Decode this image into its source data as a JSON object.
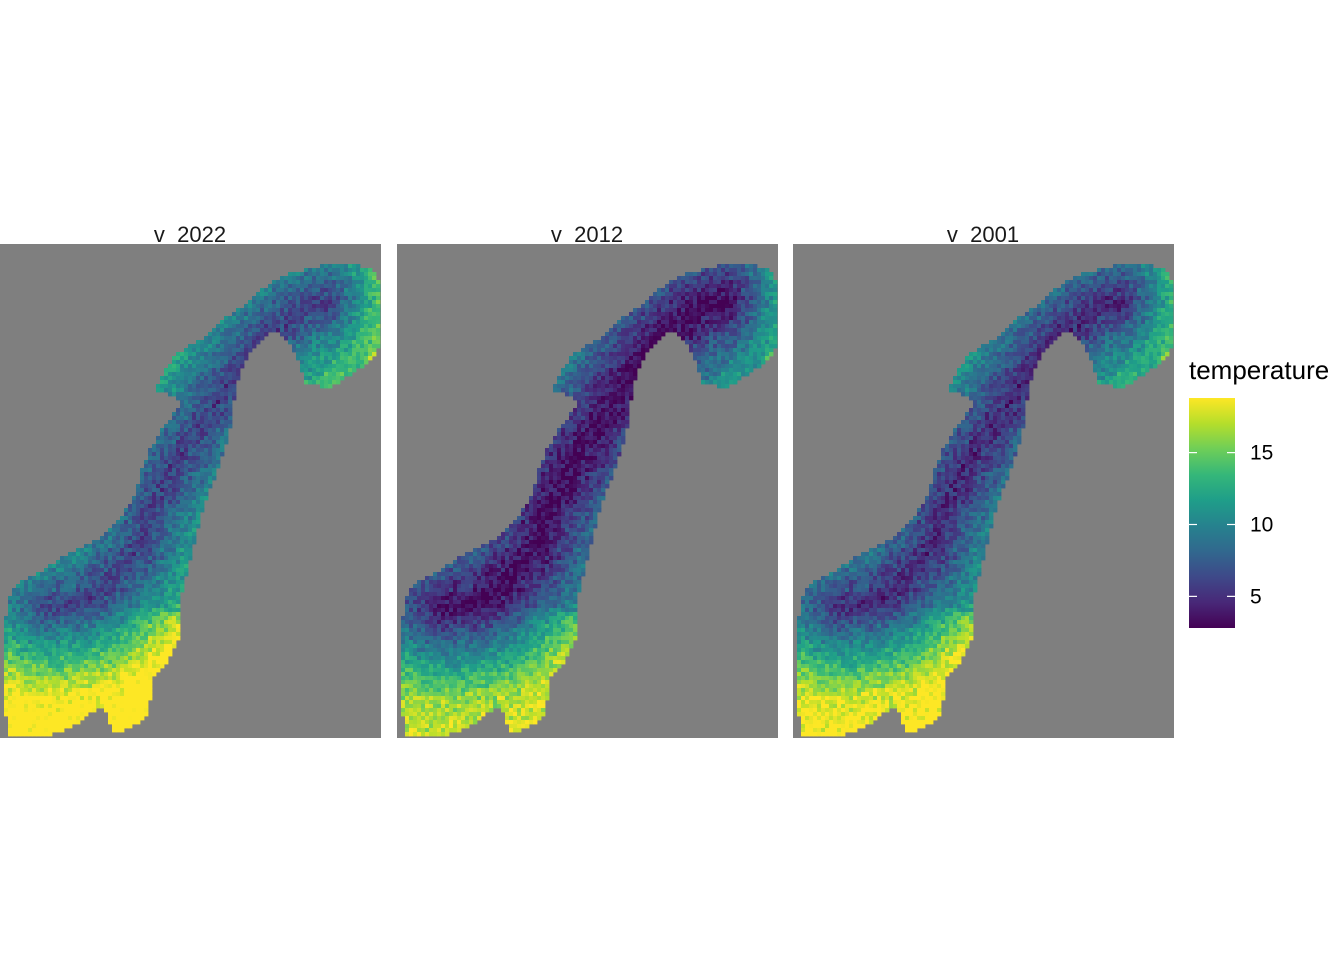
{
  "chart_data": {
    "type": "heatmap",
    "subtype": "faceted raster map",
    "panel_background": "#7f7f7f",
    "facets": [
      {
        "label": "v_2022",
        "warm_shift": 1.2
      },
      {
        "label": "v_2012",
        "warm_shift": -1.6
      },
      {
        "label": "v_2001",
        "warm_shift": 0.0
      }
    ],
    "legend": {
      "title": "temperature",
      "placement": "right",
      "min": 2.8,
      "max": 18.8,
      "ticks": [
        {
          "value": 5,
          "label": "5"
        },
        {
          "value": 10,
          "label": "10"
        },
        {
          "value": 15,
          "label": "15"
        }
      ],
      "colormap": "viridis",
      "colors": [
        "#440154",
        "#482878",
        "#3e4989",
        "#31688e",
        "#26828e",
        "#1f9e89",
        "#35b779",
        "#6ece58",
        "#b5de2b",
        "#fde725"
      ]
    }
  }
}
